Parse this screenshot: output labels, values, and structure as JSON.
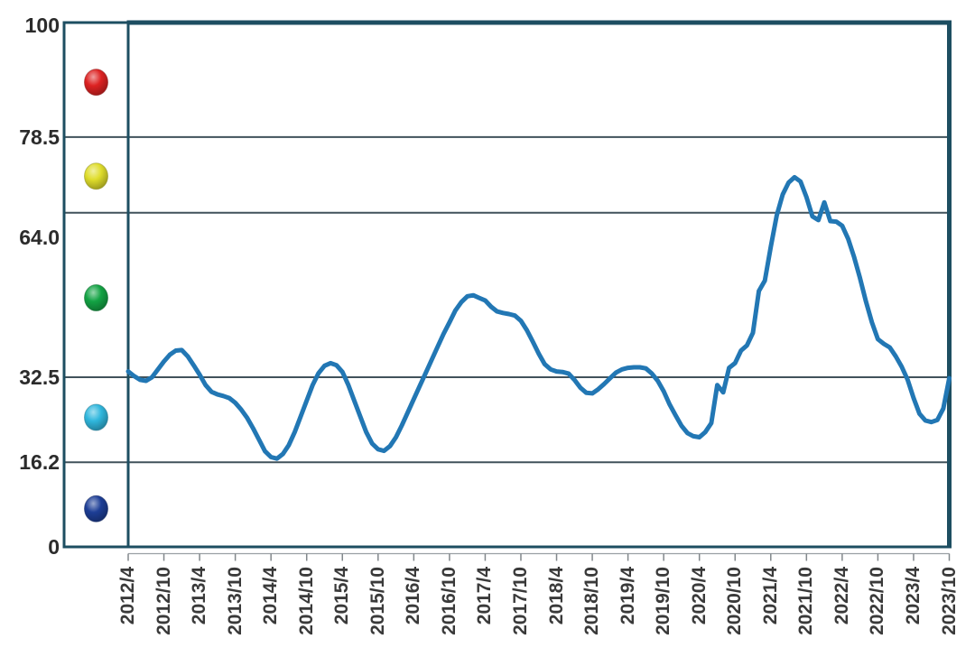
{
  "page": {
    "background": "#ffffff"
  },
  "chart_data": {
    "type": "line",
    "title": "",
    "xlabel": "",
    "ylabel": "",
    "grid": true,
    "legend_position": "left-column",
    "y_axis": {
      "min": 0,
      "max": 100,
      "tick_labels": [
        "100",
        "78.5",
        "64.0",
        "32.5",
        "16.2",
        "0"
      ],
      "tick_values": [
        100,
        78.5,
        64.0,
        32.5,
        16.2,
        0
      ]
    },
    "gridline_values": [
      78.5,
      64.0,
      32.5,
      16.2
    ],
    "x_tick_labels": [
      "2012/4",
      "2012/10",
      "2013/4",
      "2013/10",
      "2014/4",
      "2014/10",
      "2015/4",
      "2015/10",
      "2016/4",
      "2016/10",
      "2017/4",
      "2017/10",
      "2018/4",
      "2018/10",
      "2019/4",
      "2019/10",
      "2020/4",
      "2020/10",
      "2021/4",
      "2021/10",
      "2022/4",
      "2022/10",
      "2023/4",
      "2023/10"
    ],
    "series": [
      {
        "name": "index-line",
        "color": "#2277b4",
        "x": [
          "2012/4",
          "2012/5",
          "2012/6",
          "2012/7",
          "2012/8",
          "2012/9",
          "2012/10",
          "2012/11",
          "2012/12",
          "2013/1",
          "2013/2",
          "2013/3",
          "2013/4",
          "2013/5",
          "2013/6",
          "2013/7",
          "2013/8",
          "2013/9",
          "2013/10",
          "2013/11",
          "2013/12",
          "2014/1",
          "2014/2",
          "2014/3",
          "2014/4",
          "2014/5",
          "2014/6",
          "2014/7",
          "2014/8",
          "2014/9",
          "2014/10",
          "2014/11",
          "2014/12",
          "2015/1",
          "2015/2",
          "2015/3",
          "2015/4",
          "2015/5",
          "2015/6",
          "2015/7",
          "2015/8",
          "2015/9",
          "2015/10",
          "2015/11",
          "2015/12",
          "2016/1",
          "2016/2",
          "2016/3",
          "2016/4",
          "2016/5",
          "2016/6",
          "2016/7",
          "2016/8",
          "2016/9",
          "2016/10",
          "2016/11",
          "2016/12",
          "2017/1",
          "2017/2",
          "2017/3",
          "2017/4",
          "2017/5",
          "2017/6",
          "2017/7",
          "2017/8",
          "2017/9",
          "2017/10",
          "2017/11",
          "2017/12",
          "2018/1",
          "2018/2",
          "2018/3",
          "2018/4",
          "2018/5",
          "2018/6",
          "2018/7",
          "2018/8",
          "2018/9",
          "2018/10",
          "2018/11",
          "2018/12",
          "2019/1",
          "2019/2",
          "2019/3",
          "2019/4",
          "2019/5",
          "2019/6",
          "2019/7",
          "2019/8",
          "2019/9",
          "2019/10",
          "2019/11",
          "2019/12",
          "2020/1",
          "2020/2",
          "2020/3",
          "2020/4",
          "2020/5",
          "2020/6",
          "2020/7",
          "2020/8",
          "2020/9",
          "2020/10",
          "2020/11",
          "2020/12",
          "2021/1",
          "2021/2",
          "2021/3",
          "2021/4",
          "2021/5",
          "2021/6",
          "2021/7",
          "2021/8",
          "2021/9",
          "2021/10",
          "2021/11",
          "2021/12",
          "2022/1",
          "2022/2",
          "2022/3",
          "2022/4",
          "2022/5",
          "2022/6",
          "2022/7",
          "2022/8",
          "2022/9",
          "2022/10",
          "2022/11",
          "2022/12",
          "2023/1",
          "2023/2",
          "2023/3",
          "2023/4",
          "2023/5",
          "2023/6",
          "2023/7",
          "2023/8",
          "2023/9",
          "2023/10"
        ],
        "values": [
          33.6,
          32.7,
          32.0,
          31.8,
          32.5,
          34.0,
          35.5,
          36.8,
          37.6,
          37.7,
          36.5,
          34.8,
          33.0,
          31.0,
          29.7,
          29.2,
          28.9,
          28.5,
          27.6,
          26.3,
          24.7,
          22.7,
          20.5,
          18.3,
          17.2,
          16.9,
          17.8,
          19.5,
          22.0,
          25.0,
          28.0,
          31.0,
          33.3,
          34.7,
          35.2,
          34.8,
          33.5,
          31.0,
          28.0,
          25.0,
          22.0,
          19.8,
          18.7,
          18.4,
          19.3,
          21.0,
          23.3,
          25.8,
          28.3,
          30.8,
          33.3,
          35.8,
          38.3,
          40.8,
          43.0,
          45.3,
          46.9,
          48.0,
          48.2,
          47.7,
          47.2,
          46.0,
          45.1,
          44.8,
          44.6,
          44.3,
          43.3,
          41.5,
          39.3,
          37.0,
          35.0,
          34.0,
          33.6,
          33.5,
          33.2,
          32.0,
          30.5,
          29.5,
          29.4,
          30.2,
          31.2,
          32.3,
          33.4,
          34.0,
          34.3,
          34.4,
          34.4,
          34.2,
          33.2,
          31.8,
          29.8,
          27.3,
          25.2,
          23.2,
          21.8,
          21.2,
          21.0,
          22.0,
          23.7,
          31.0,
          29.6,
          34.3,
          35.2,
          37.6,
          38.6,
          41.0,
          49.0,
          51.0,
          57.5,
          63.5,
          67.5,
          69.8,
          70.8,
          70.0,
          67.0,
          63.3,
          62.6,
          66.0,
          62.4,
          62.3,
          61.5,
          59.0,
          55.5,
          51.5,
          47.0,
          43.0,
          39.8,
          38.9,
          38.2,
          36.5,
          34.5,
          32.0,
          28.5,
          25.5,
          24.2,
          23.9,
          24.3,
          26.5,
          32.3
        ]
      }
    ],
    "legend_markers": [
      {
        "name": "red-ball",
        "color": "#dd2222",
        "zone": [
          78.5,
          100
        ],
        "center_value": 89.0
      },
      {
        "name": "yellow-ball",
        "color": "#dfdd2b",
        "zone": [
          64.0,
          78.5
        ],
        "center_value": 71.0
      },
      {
        "name": "green-ball",
        "color": "#13a344",
        "zone": [
          32.5,
          64.0
        ],
        "center_value": 47.7
      },
      {
        "name": "cyan-ball",
        "color": "#30b7dd",
        "zone": [
          16.2,
          32.5
        ],
        "center_value": 24.8
      },
      {
        "name": "navy-ball",
        "color": "#1d3e96",
        "zone": [
          0,
          16.2
        ],
        "center_value": 7.3
      }
    ]
  },
  "style": {
    "line_color": "#2277b4",
    "box_border_color": "#1d4e61",
    "gridline_color": "#41525b",
    "axis_line_color": "#9aa0a4",
    "tick_color": "#82888c",
    "y_label_color": "#2b2b2b",
    "x_label_color": "#3a3a3a",
    "background": "#ffffff"
  }
}
